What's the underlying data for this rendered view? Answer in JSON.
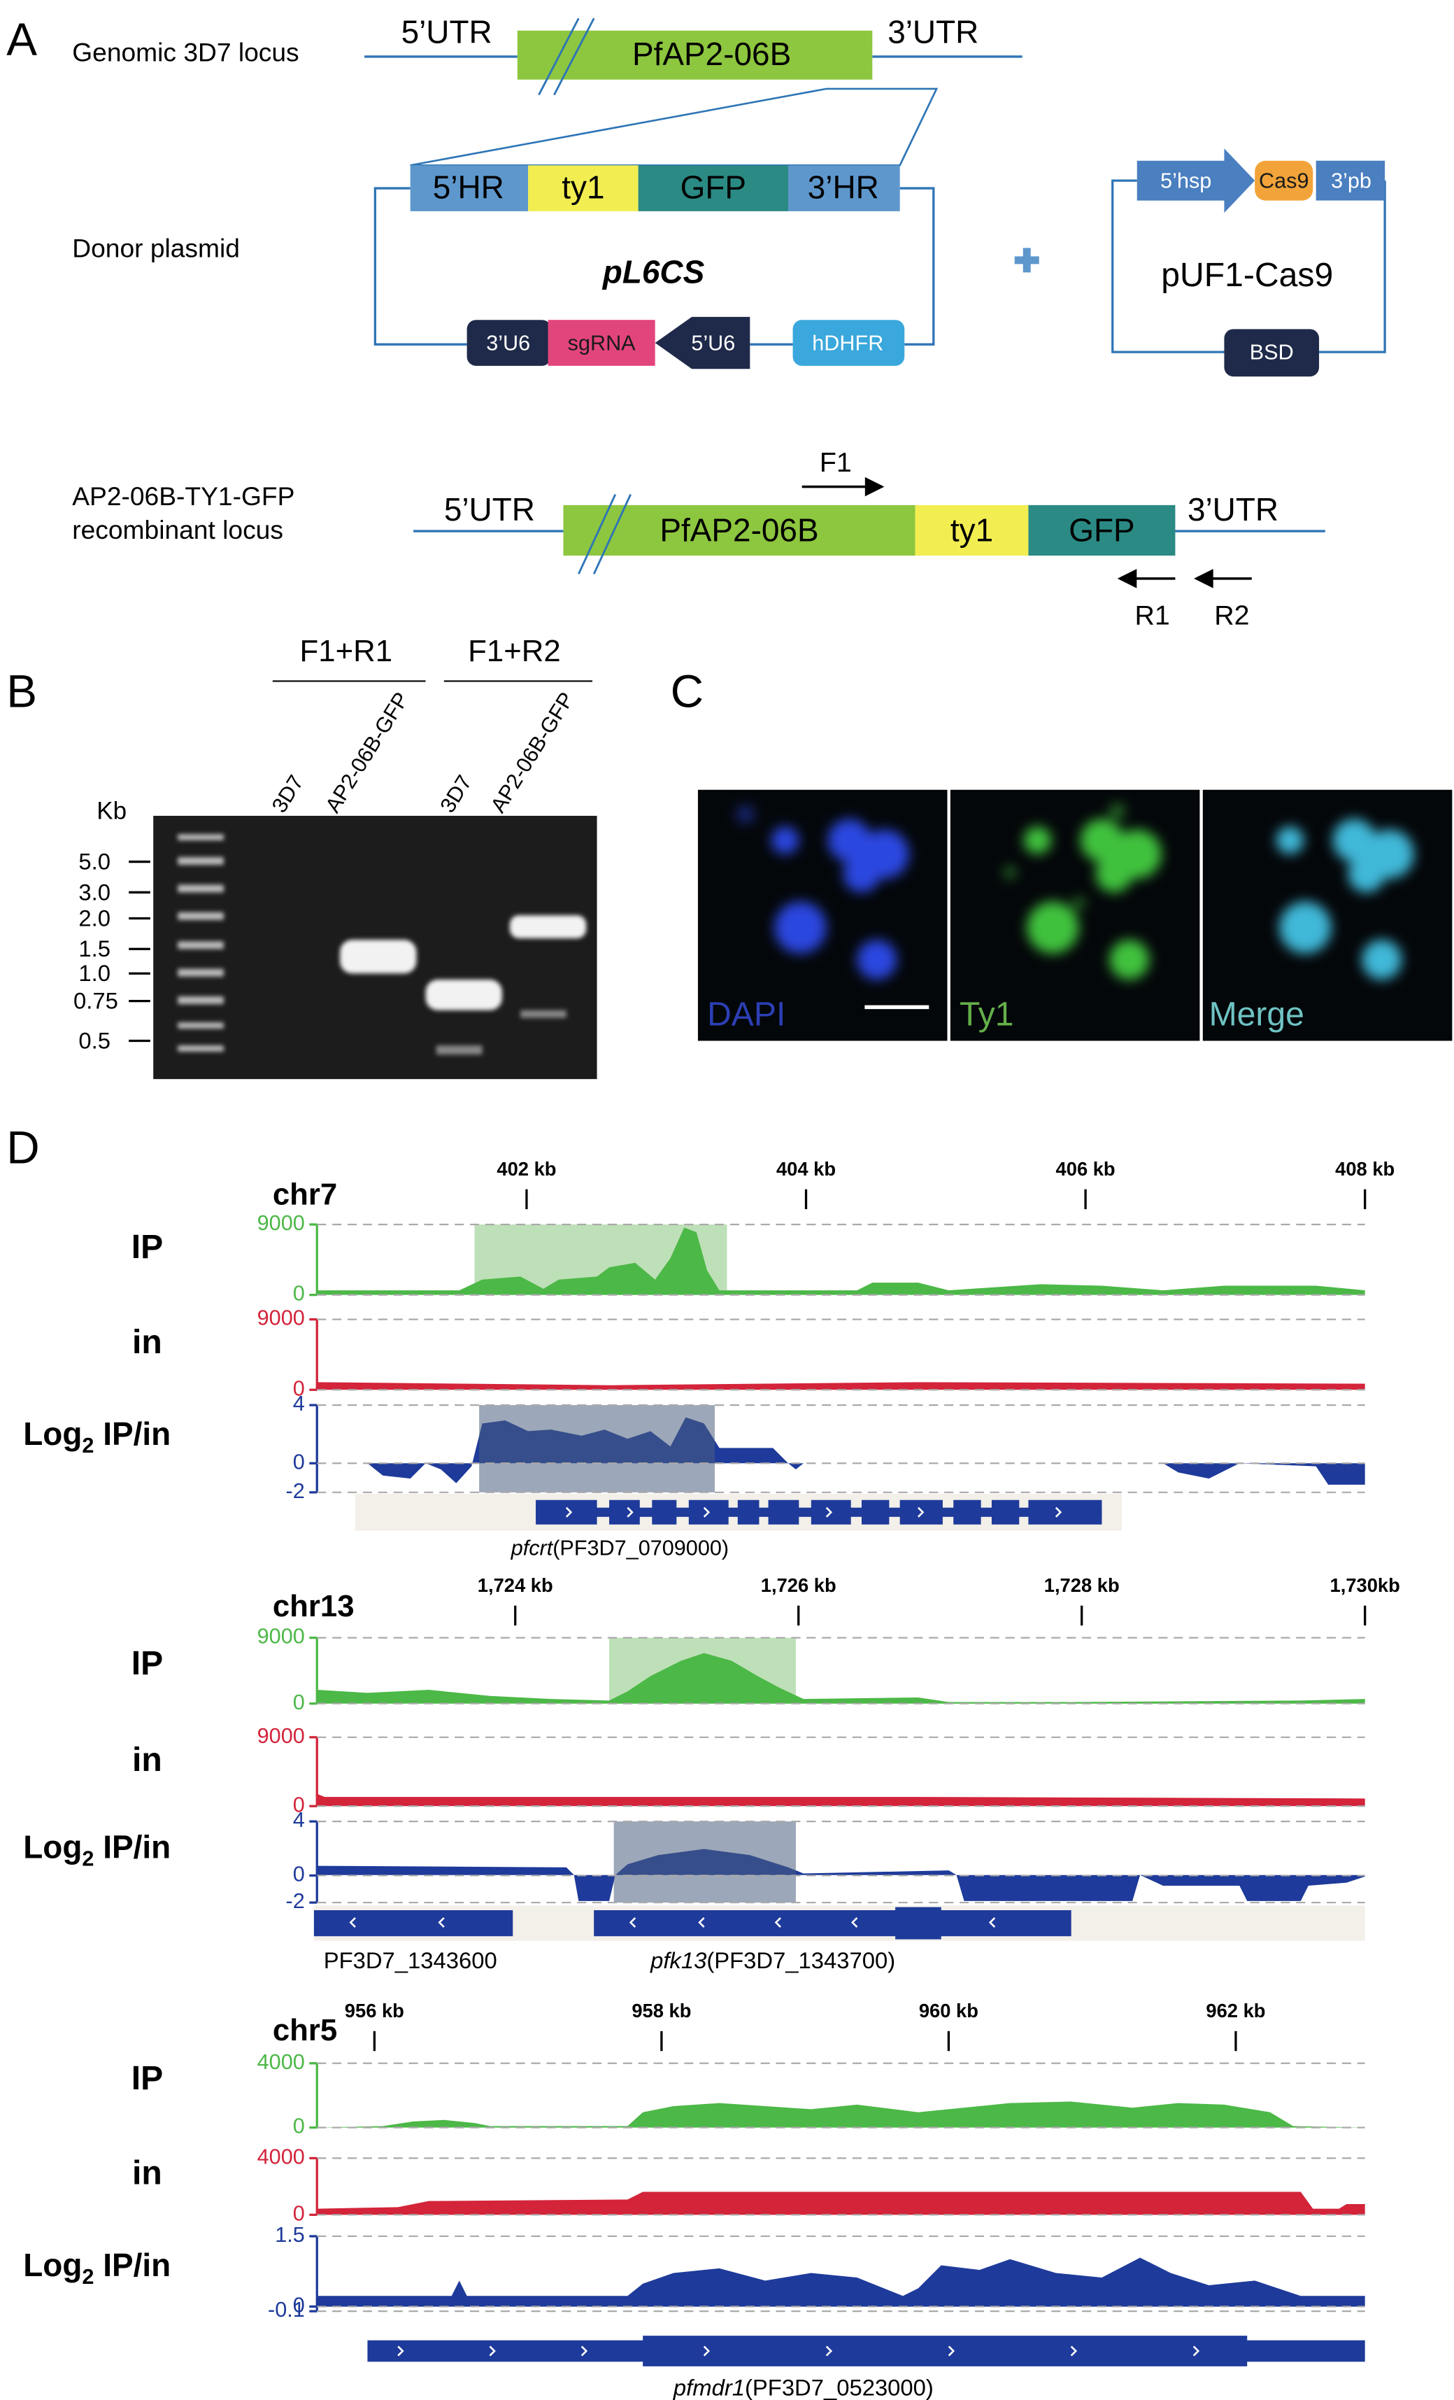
{
  "panel_labels": {
    "a": "A",
    "b": "B",
    "c": "C",
    "d": "D"
  },
  "panel_a": {
    "genomic": {
      "label": "Genomic 3D7 locus",
      "utr5": "5’UTR",
      "gene": "PfAP2-06B",
      "utr3": "3’UTR"
    },
    "donor": {
      "label": "Donor plasmid",
      "parts": [
        "5’HR",
        "ty1",
        "GFP",
        "3’HR"
      ],
      "name": "pL6CS",
      "cassette": [
        "3’U6",
        "sgRNA",
        "5’U6",
        "hDHFR"
      ]
    },
    "cas9_plasmid": {
      "parts": [
        "5’hsp",
        "Cas9",
        "3’pb"
      ],
      "name": "pUF1-Cas9",
      "marker": "BSD"
    },
    "recombinant": {
      "label": [
        "AP2-06B-TY1-GFP",
        "recombinant locus"
      ],
      "utr5": "5’UTR",
      "parts": [
        "PfAP2-06B",
        "ty1",
        "GFP"
      ],
      "utr3": "3’UTR",
      "primers": [
        "F1",
        "R1",
        "R2"
      ]
    }
  },
  "panel_b": {
    "pairs": [
      "F1+R1",
      "F1+R2"
    ],
    "lanes": [
      "3D7",
      "AP2-06B-GFP",
      "3D7",
      "AP2-06B-GFP"
    ],
    "unit": "Kb",
    "ladder": [
      "5.0",
      "3.0",
      "2.0",
      "1.5",
      "1.0",
      "0.75",
      "0.5"
    ]
  },
  "panel_c": {
    "channels": [
      "DAPI",
      "Ty1",
      "Merge"
    ]
  },
  "panel_d": {
    "loci": [
      {
        "chromosome": "chr7",
        "xlim": [
          400.5,
          408
        ],
        "xticks": [
          {
            "value": 402,
            "label": "402 kb"
          },
          {
            "value": 404,
            "label": "404 kb"
          },
          {
            "value": 406,
            "label": "406 kb"
          },
          {
            "value": 408,
            "label": "408 kb"
          }
        ],
        "tracks": [
          {
            "label": "IP",
            "ylim": [
              0,
              9000
            ],
            "yticks": [
              0,
              9000
            ]
          },
          {
            "label": "in",
            "ylim": [
              0,
              9000
            ],
            "yticks": [
              0,
              9000
            ]
          },
          {
            "label": {
              "base": "Log",
              "sub": "2",
              "rest": " IP/in"
            },
            "ylim": [
              -2,
              4
            ],
            "yticks": [
              -2,
              0,
              4
            ]
          }
        ],
        "genes": [
          {
            "symbol": "pfcrt",
            "id": "(PF3D7_0709000)"
          }
        ]
      },
      {
        "chromosome": "chr13",
        "xlim": [
          1722.6,
          1730
        ],
        "xticks": [
          {
            "value": 1724,
            "label": "1,724 kb"
          },
          {
            "value": 1726,
            "label": "1,726 kb"
          },
          {
            "value": 1728,
            "label": "1,728 kb"
          },
          {
            "value": 1730,
            "label": "1,730kb"
          }
        ],
        "tracks": [
          {
            "label": "IP",
            "ylim": [
              0,
              9000
            ],
            "yticks": [
              0,
              9000
            ]
          },
          {
            "label": "in",
            "ylim": [
              0,
              9000
            ],
            "yticks": [
              0,
              9000
            ]
          },
          {
            "label": {
              "base": "Log",
              "sub": "2",
              "rest": " IP/in"
            },
            "ylim": [
              -2,
              4
            ],
            "yticks": [
              -2,
              0,
              4
            ]
          }
        ],
        "genes": [
          {
            "id": "PF3D7_1343600"
          },
          {
            "symbol": "pfk13",
            "id": "(PF3D7_1343700)"
          }
        ]
      },
      {
        "chromosome": "chr5",
        "xlim": [
          955.6,
          962.9
        ],
        "xticks": [
          {
            "value": 956,
            "label": "956 kb"
          },
          {
            "value": 958,
            "label": "958 kb"
          },
          {
            "value": 960,
            "label": "960 kb"
          },
          {
            "value": 962,
            "label": "962 kb"
          }
        ],
        "tracks": [
          {
            "label": "IP",
            "ylim": [
              0,
              4000
            ],
            "yticks": [
              0,
              4000
            ]
          },
          {
            "label": "in",
            "ylim": [
              0,
              4000
            ],
            "yticks": [
              0,
              4000
            ]
          },
          {
            "label": {
              "base": "Log",
              "sub": "2",
              "rest": " IP/in"
            },
            "ylim": [
              -0.1,
              1.5
            ],
            "yticks": [
              -0.1,
              0,
              1.5
            ]
          }
        ],
        "genes": [
          {
            "symbol": "pfmdr1",
            "id": "(PF3D7_0523000)"
          }
        ]
      }
    ]
  }
}
